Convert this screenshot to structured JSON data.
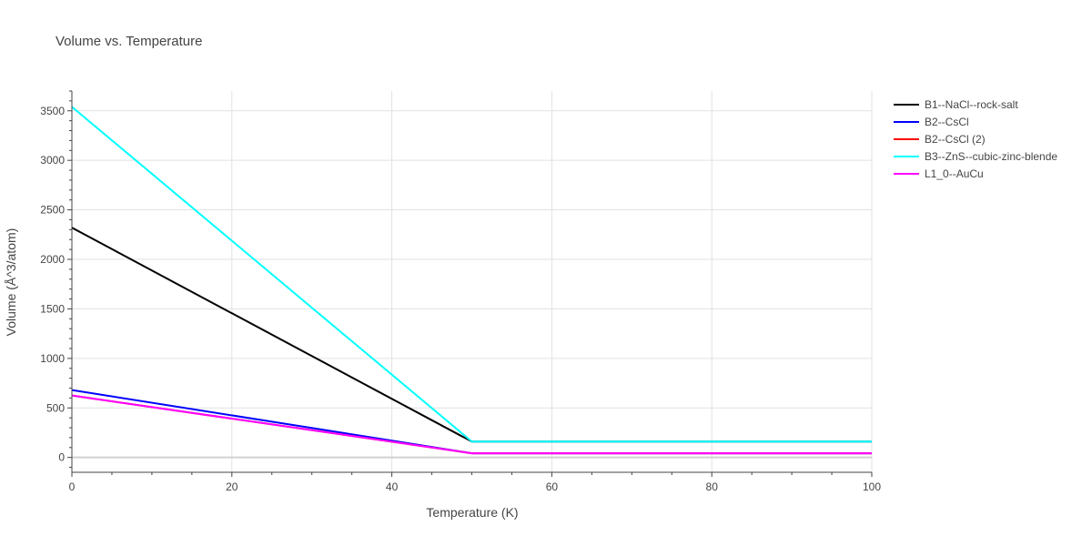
{
  "chart_data": {
    "type": "line",
    "title": "Volume vs. Temperature",
    "xlabel": "Temperature (K)",
    "ylabel": "Volume (Å^3/atom)",
    "xlim": [
      0,
      100
    ],
    "ylim": [
      -150,
      3700
    ],
    "x_ticks": [
      0,
      20,
      40,
      60,
      80,
      100
    ],
    "x_tick_labels": [
      "0",
      "20",
      "40",
      "60",
      "80",
      "100"
    ],
    "y_ticks": [
      0,
      500,
      1000,
      1500,
      2000,
      2500,
      3000,
      3500
    ],
    "y_tick_labels": [
      "0",
      "500",
      "1000",
      "1500",
      "2000",
      "2500",
      "3000",
      "3500"
    ],
    "grid": true,
    "legend_position": "top-right",
    "series": [
      {
        "name": "B1--NaCl--rock-salt",
        "color": "#000000",
        "x": [
          0,
          50,
          100
        ],
        "y": [
          2320,
          160,
          160
        ]
      },
      {
        "name": "B2--CsCl",
        "color": "#0000ff",
        "x": [
          0,
          50,
          100
        ],
        "y": [
          680,
          42,
          42
        ]
      },
      {
        "name": "B2--CsCl (2)",
        "color": "#ff0000",
        "x": [
          0,
          50,
          100
        ],
        "y": [
          625,
          42,
          42
        ]
      },
      {
        "name": "B3--ZnS--cubic-zinc-blende",
        "color": "#00ffff",
        "x": [
          0,
          50,
          100
        ],
        "y": [
          3540,
          160,
          160
        ]
      },
      {
        "name": "L1_0--AuCu",
        "color": "#ff00ff",
        "x": [
          0,
          50,
          100
        ],
        "y": [
          625,
          42,
          42
        ]
      }
    ]
  }
}
